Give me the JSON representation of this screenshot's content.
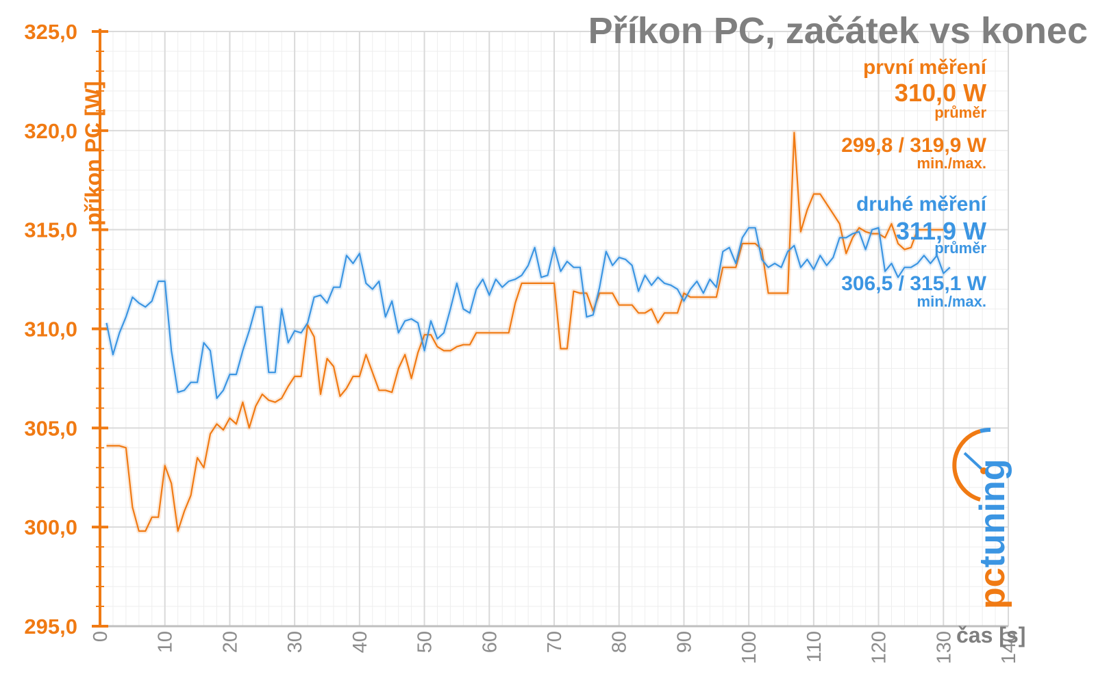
{
  "chart_data": {
    "type": "line",
    "title": "Příkon PC, začátek vs konec",
    "xlabel": "čas [s]",
    "ylabel": "příkon PC [W]",
    "xlim": [
      0,
      140
    ],
    "ylim": [
      295,
      325
    ],
    "x_ticks": [
      0,
      10,
      20,
      30,
      40,
      50,
      60,
      70,
      80,
      90,
      100,
      110,
      120,
      130,
      140
    ],
    "y_ticks": [
      "295,0",
      "300,0",
      "305,0",
      "310,0",
      "315,0",
      "320,0",
      "325,0"
    ],
    "grid": true,
    "series": [
      {
        "name": "první měření",
        "color": "#f07a13",
        "average": "310,0 W",
        "average_label": "průměr",
        "minmax": "299,8 / 319,9 W",
        "minmax_label": "min./max.",
        "values": [
          304.1,
          304.1,
          304.1,
          304.0,
          301.0,
          299.8,
          299.8,
          300.5,
          300.5,
          303.1,
          302.2,
          299.8,
          300.8,
          301.6,
          303.5,
          303.0,
          304.7,
          305.2,
          304.9,
          305.5,
          305.2,
          306.3,
          305.0,
          306.1,
          306.7,
          306.4,
          306.3,
          306.5,
          307.1,
          307.6,
          307.6,
          310.2,
          309.6,
          306.7,
          308.5,
          308.1,
          306.6,
          307.0,
          307.6,
          307.6,
          308.7,
          307.8,
          306.9,
          306.9,
          306.8,
          308.0,
          308.7,
          307.5,
          308.8,
          309.7,
          309.7,
          309.1,
          308.9,
          308.9,
          309.1,
          309.2,
          309.2,
          309.8,
          309.8,
          309.8,
          309.8,
          309.8,
          309.8,
          311.3,
          312.3,
          312.3,
          312.3,
          312.3,
          312.3,
          312.3,
          309.0,
          309.0,
          311.9,
          311.8,
          311.8,
          310.9,
          311.8,
          311.8,
          311.8,
          311.2,
          311.2,
          311.2,
          310.8,
          310.8,
          311.0,
          310.3,
          310.8,
          310.8,
          310.8,
          311.8,
          311.6,
          311.6,
          311.6,
          311.6,
          311.6,
          313.1,
          313.1,
          313.1,
          314.3,
          314.3,
          314.3,
          314.0,
          311.8,
          311.8,
          311.8,
          311.8,
          319.9,
          314.9,
          316.0,
          316.8,
          316.8,
          316.3,
          315.8,
          315.3,
          313.8,
          314.6,
          315.1,
          314.9,
          314.8,
          314.8,
          314.6,
          315.3,
          314.3,
          314.0,
          314.1,
          315.0,
          315.0,
          315.0,
          315.0,
          315.0
        ]
      },
      {
        "name": "druhé měření",
        "color": "#3b95e2",
        "average": "311,9 W",
        "average_label": "průměr",
        "minmax": "306,5 / 315,1 W",
        "minmax_label": "min./max.",
        "values": [
          310.3,
          308.7,
          309.8,
          310.6,
          311.6,
          311.3,
          311.1,
          311.4,
          312.4,
          312.4,
          308.9,
          306.8,
          306.9,
          307.3,
          307.3,
          309.3,
          308.9,
          306.5,
          306.9,
          307.7,
          307.7,
          308.9,
          309.9,
          311.1,
          311.1,
          307.8,
          307.8,
          311.0,
          309.3,
          309.9,
          309.8,
          310.3,
          311.6,
          311.7,
          311.3,
          312.1,
          312.1,
          313.7,
          313.3,
          313.8,
          312.3,
          312.0,
          312.4,
          310.6,
          311.4,
          309.8,
          310.4,
          310.5,
          310.3,
          308.9,
          310.4,
          309.5,
          309.8,
          311.0,
          312.3,
          311.0,
          310.8,
          312.0,
          312.5,
          311.7,
          312.5,
          312.1,
          312.4,
          312.5,
          312.7,
          313.2,
          314.1,
          312.6,
          312.7,
          314.1,
          312.9,
          313.4,
          313.1,
          313.1,
          310.6,
          310.7,
          312.1,
          313.9,
          313.2,
          313.6,
          313.5,
          313.2,
          311.9,
          312.7,
          312.2,
          312.6,
          312.3,
          312.2,
          312.0,
          311.4,
          312.0,
          312.4,
          311.8,
          312.5,
          312.1,
          313.9,
          314.1,
          313.3,
          314.6,
          315.1,
          315.1,
          313.5,
          313.1,
          313.3,
          313.1,
          313.9,
          314.2,
          313.1,
          313.5,
          313.0,
          313.7,
          313.2,
          313.6,
          314.6,
          314.6,
          314.8,
          314.9,
          314.0,
          315.0,
          315.1,
          312.9,
          313.3,
          312.6,
          313.1,
          313.1,
          313.3,
          313.7,
          313.3,
          313.7,
          312.8,
          313.1
        ]
      }
    ]
  },
  "logo": {
    "text": "pctuning",
    "icon": "pctuning-gauge-logo"
  }
}
